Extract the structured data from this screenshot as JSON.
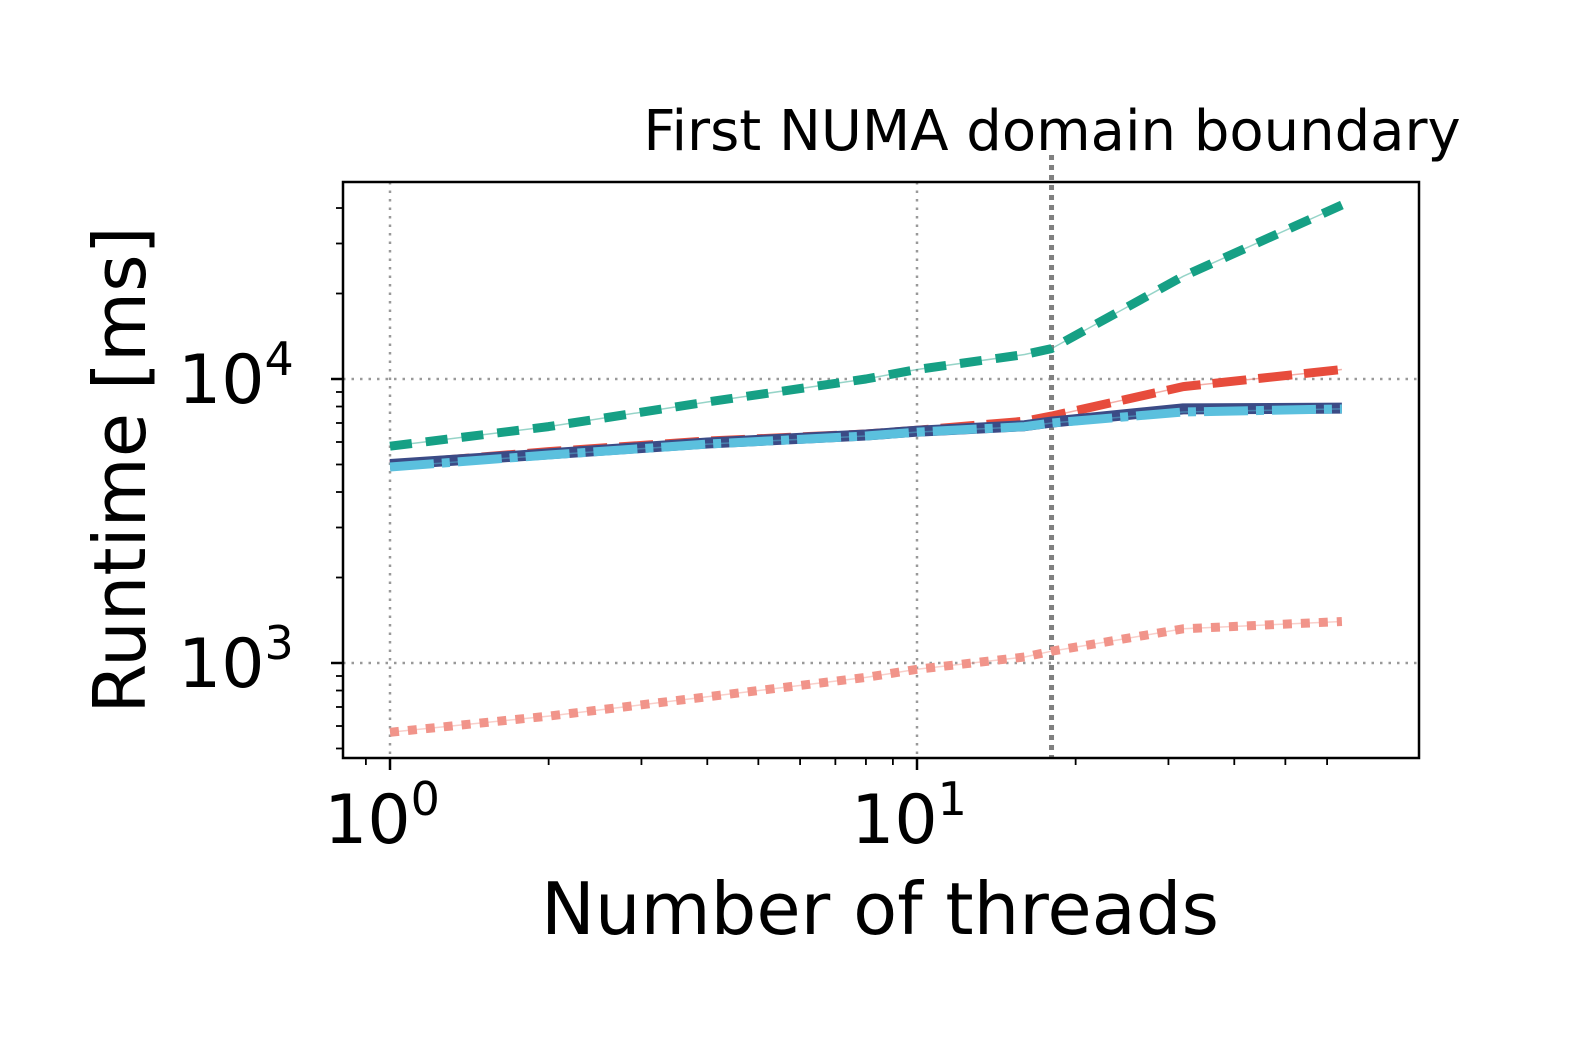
{
  "chart_data": {
    "type": "line",
    "title": "",
    "xlabel": "Number of threads",
    "ylabel": "Runtime [ms]",
    "xscale": "log",
    "yscale": "log",
    "xlim": [
      0.82,
      64
    ],
    "ylim": [
      480,
      48000
    ],
    "grid": true,
    "legend": "none",
    "x_ticks": [
      {
        "value": 1,
        "label": "10",
        "exp": "0"
      },
      {
        "value": 10,
        "label": "10",
        "exp": "1"
      }
    ],
    "y_ticks": [
      {
        "value": 1000,
        "label": "10",
        "exp": "3"
      },
      {
        "value": 10000,
        "label": "10",
        "exp": "4"
      }
    ],
    "annotations": [
      {
        "text": "First NUMA domain boundary",
        "x": 18
      }
    ],
    "series": [
      {
        "color": "#16a085",
        "style": "dashed",
        "x": [
          1,
          2,
          4,
          8,
          10,
          16,
          18,
          32,
          64
        ],
        "y": [
          5800,
          6800,
          8300,
          10000,
          10800,
          12200,
          12800,
          23000,
          41000
        ]
      },
      {
        "color": "#e74c3c",
        "style": "longdash",
        "x": [
          1,
          2,
          4,
          8,
          10,
          16,
          18,
          32,
          64
        ],
        "y": [
          5000,
          5550,
          6050,
          6400,
          6600,
          7100,
          7400,
          9400,
          10800
        ]
      },
      {
        "color": "#3b4b86",
        "style": "solid",
        "x": [
          1,
          2,
          4,
          8,
          10,
          16,
          18,
          32,
          64
        ],
        "y": [
          5000,
          5450,
          5950,
          6350,
          6550,
          6850,
          7050,
          7850,
          7900
        ]
      },
      {
        "color": "#5bc0de",
        "style": "dashdot",
        "x": [
          1,
          2,
          4,
          8,
          10,
          16,
          18,
          32,
          64
        ],
        "y": [
          4900,
          5400,
          5900,
          6300,
          6500,
          6800,
          7000,
          7650,
          7850
        ]
      },
      {
        "color": "#f1948a",
        "style": "dotted",
        "x": [
          1,
          2,
          4,
          8,
          10,
          16,
          18,
          32,
          64
        ],
        "y": [
          570,
          650,
          760,
          890,
          950,
          1050,
          1100,
          1320,
          1400
        ]
      }
    ]
  }
}
